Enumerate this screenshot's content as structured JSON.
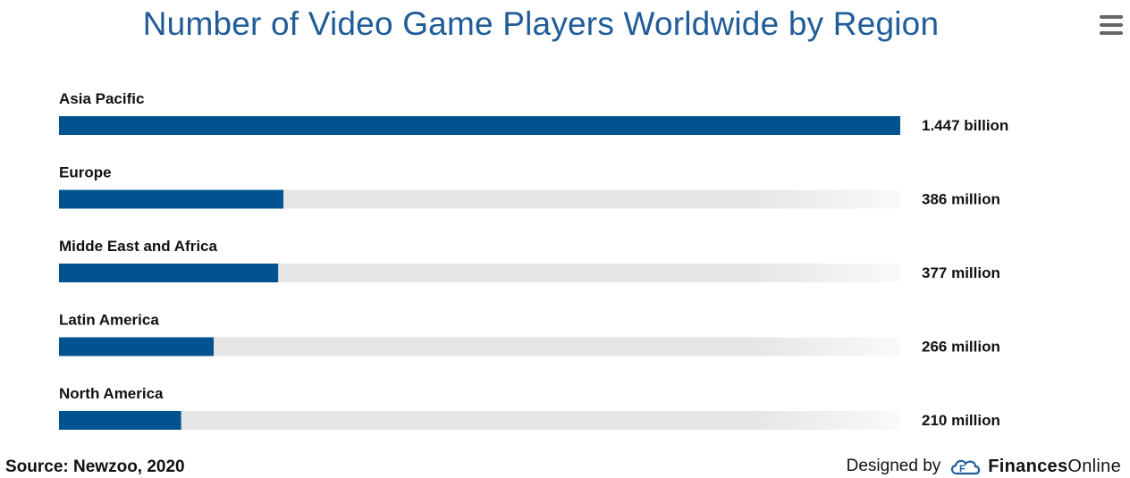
{
  "header": {
    "title": "Number of Video Game Players Worldwide by Region"
  },
  "menu": {
    "icon": "hamburger-menu-icon"
  },
  "chart_data": {
    "type": "bar",
    "orientation": "horizontal",
    "title": "Number of Video Game Players Worldwide by Region",
    "categories": [
      "Asia Pacific",
      "Europe",
      "Midde East and Africa",
      "Latin America",
      "North America"
    ],
    "values": [
      1447,
      386,
      377,
      266,
      210
    ],
    "value_labels": [
      "1.447 billion",
      "386 million",
      "377 million",
      "266 million",
      "210 million"
    ],
    "xlim": [
      0,
      1447
    ],
    "bar_color": "#00538f",
    "track_color": "#e5e5e5",
    "grid": false
  },
  "footer": {
    "source": "Source: Newzoo, 2020",
    "designed_by": "Designed by",
    "brand_part1": "Finances",
    "brand_part2": "Online",
    "brand_color": "#1f5c99"
  }
}
